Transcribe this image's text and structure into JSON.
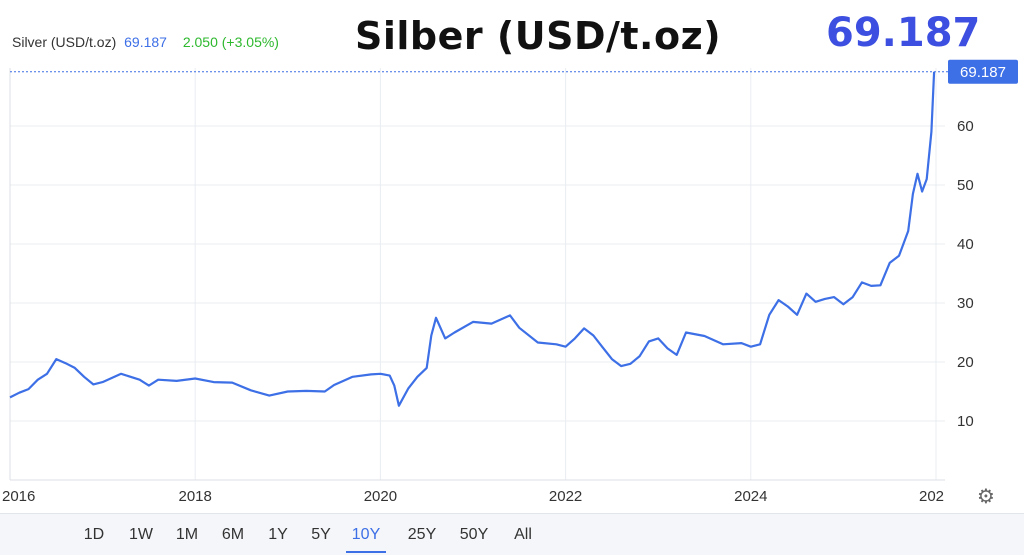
{
  "legend": {
    "name": "Silver (USD/t.oz)",
    "price": "69.187",
    "change": "2.050 (+3.05%)"
  },
  "overlay_title": "Silber (USD/t.oz)",
  "overlay_price": "69.187",
  "price_tag": "69.187",
  "ranges": [
    "1D",
    "1W",
    "1M",
    "6M",
    "1Y",
    "5Y",
    "10Y",
    "25Y",
    "50Y",
    "All"
  ],
  "active_range": "10Y",
  "icons": {
    "settings": "gear-icon"
  },
  "colors": {
    "line": "#3d6fe6",
    "price_text": "#3d6fe6",
    "change_text": "#2eb82e",
    "title_price": "#3c4fe0",
    "tag_bg": "#3d6fe6"
  },
  "chart_data": {
    "type": "line",
    "series": [
      {
        "name": "Silver (USD/t.oz)",
        "x": [
          2016.0,
          2016.1,
          2016.2,
          2016.3,
          2016.4,
          2016.5,
          2016.6,
          2016.7,
          2016.8,
          2016.9,
          2017.0,
          2017.2,
          2017.4,
          2017.5,
          2017.6,
          2017.8,
          2018.0,
          2018.2,
          2018.4,
          2018.6,
          2018.8,
          2019.0,
          2019.2,
          2019.4,
          2019.5,
          2019.7,
          2019.9,
          2020.0,
          2020.1,
          2020.15,
          2020.2,
          2020.3,
          2020.4,
          2020.5,
          2020.55,
          2020.6,
          2020.7,
          2020.8,
          2021.0,
          2021.2,
          2021.4,
          2021.5,
          2021.7,
          2021.9,
          2022.0,
          2022.1,
          2022.2,
          2022.3,
          2022.4,
          2022.5,
          2022.6,
          2022.7,
          2022.8,
          2022.9,
          2023.0,
          2023.1,
          2023.2,
          2023.3,
          2023.5,
          2023.7,
          2023.9,
          2024.0,
          2024.1,
          2024.2,
          2024.3,
          2024.4,
          2024.5,
          2024.6,
          2024.7,
          2024.8,
          2024.9,
          2025.0,
          2025.1,
          2025.2,
          2025.3,
          2025.4,
          2025.5,
          2025.6,
          2025.7,
          2025.75,
          2025.8,
          2025.85,
          2025.9,
          2025.95,
          2025.98
        ],
        "values": [
          14.0,
          14.8,
          15.4,
          17.0,
          18.0,
          20.5,
          19.8,
          19.0,
          17.5,
          16.2,
          16.6,
          18.0,
          17.0,
          16.0,
          17.0,
          16.8,
          17.2,
          16.6,
          16.5,
          15.2,
          14.3,
          15.0,
          15.1,
          15.0,
          16.1,
          17.5,
          17.9,
          18.0,
          17.7,
          16.0,
          12.6,
          15.5,
          17.5,
          19.0,
          24.5,
          27.5,
          24.0,
          25.0,
          26.8,
          26.5,
          27.9,
          25.8,
          23.3,
          23.0,
          22.6,
          24.0,
          25.7,
          24.5,
          22.5,
          20.5,
          19.3,
          19.7,
          21.0,
          23.5,
          24.0,
          22.3,
          21.2,
          25.0,
          24.4,
          23.0,
          23.2,
          22.6,
          23.0,
          28.0,
          30.5,
          29.4,
          28.0,
          31.6,
          30.2,
          30.7,
          31.0,
          29.8,
          31.0,
          33.5,
          32.9,
          33.0,
          36.8,
          38.0,
          42.2,
          48.5,
          51.9,
          48.9,
          51.0,
          59.0,
          69.187
        ]
      }
    ],
    "xlim": [
      2016.0,
      2026.0
    ],
    "ylim": [
      0,
      70
    ],
    "x_ticks": [
      2016,
      2018,
      2020,
      2022,
      2024
    ],
    "x_tick_labels": [
      "2016",
      "2018",
      "2020",
      "2022",
      "2024"
    ],
    "x_last_label": "202",
    "y_ticks": [
      10,
      20,
      30,
      40,
      50,
      60
    ],
    "y_axis_side": "right",
    "grid": true,
    "last_value": 69.187
  }
}
